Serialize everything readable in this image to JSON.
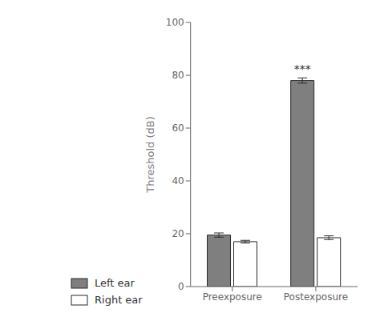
{
  "chart_data": {
    "type": "bar",
    "categories": [
      "Preexposure",
      "Postexposure"
    ],
    "series": [
      {
        "name": "Left ear",
        "color": "#7f7f7f",
        "values": [
          19.5,
          78.0
        ],
        "errors": [
          0.8,
          1.0
        ]
      },
      {
        "name": "Right ear",
        "color": "#ffffff",
        "values": [
          17.0,
          18.5
        ],
        "errors": [
          0.5,
          0.7
        ]
      }
    ],
    "ylabel": "Threshold (dB)",
    "ylim": [
      0,
      100
    ],
    "yticks": [
      0,
      20,
      40,
      60,
      80,
      100
    ],
    "annotations": [
      {
        "text": "***",
        "category": "Postexposure",
        "series": "Left ear"
      }
    ],
    "legend": "lower left"
  }
}
